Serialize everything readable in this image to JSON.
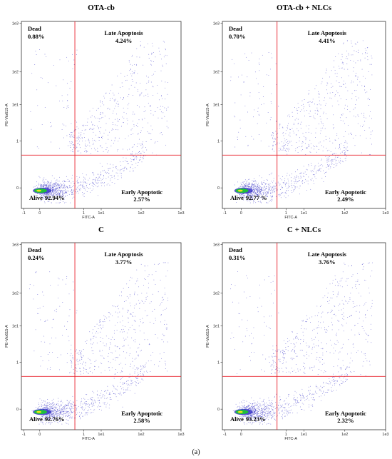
{
  "caption": "(a)",
  "colors": {
    "gate": "#e8202a",
    "dots": "#3a36c8",
    "dense": "#1fbf3a",
    "core": "#f2e51a"
  },
  "chart_data": [
    {
      "type": "scatter",
      "title": "OTA-cb",
      "xlabel": "FITC-A",
      "ylabel": "PE-Vio615-A",
      "xticks": [
        "-1",
        "0",
        "1",
        "1e1",
        "1e2",
        "1e3"
      ],
      "yticks": [
        "0",
        "1",
        "1e1",
        "1e2",
        "1e3"
      ],
      "quadrants": {
        "dead": {
          "name": "Dead",
          "value": "0.88%"
        },
        "late": {
          "name": "Late Apoptosis",
          "value": "4.24%"
        },
        "alive": {
          "name": "Alive",
          "value": "92.94%"
        },
        "early": {
          "name": "Early Apoptotic",
          "value": "2.57%"
        }
      }
    },
    {
      "type": "scatter",
      "title": "OTA-cb + NLCs",
      "xlabel": "FITC-A",
      "ylabel": "PE-Vio615-A",
      "xticks": [
        "-1",
        "0",
        "1",
        "1e1",
        "1e2",
        "1e3"
      ],
      "yticks": [
        "0",
        "1",
        "1e1",
        "1e2",
        "1e3"
      ],
      "quadrants": {
        "dead": {
          "name": "Dead",
          "value": "0.70%"
        },
        "late": {
          "name": "Late Apoptosis",
          "value": "4.41%"
        },
        "alive": {
          "name": "Alive",
          "value": "92.77 %"
        },
        "early": {
          "name": "Early Apoptotic",
          "value": "2.49%"
        }
      }
    },
    {
      "type": "scatter",
      "title": "C",
      "xlabel": "FITC-A",
      "ylabel": "PE-Vio615-A",
      "xticks": [
        "-1",
        "0",
        "1",
        "1e1",
        "1e2",
        "1e3"
      ],
      "yticks": [
        "0",
        "1",
        "1e1",
        "1e2",
        "1e3"
      ],
      "quadrants": {
        "dead": {
          "name": "Dead",
          "value": "0.24%"
        },
        "late": {
          "name": "Late Apoptosis",
          "value": "3.77%"
        },
        "alive": {
          "name": "Alive",
          "value": "92.76%"
        },
        "early": {
          "name": "Early Apoptotic",
          "value": "2.58%"
        }
      }
    },
    {
      "type": "scatter",
      "title": "C + NLCs",
      "xlabel": "FITC-A",
      "ylabel": "PE-Vio615-A",
      "xticks": [
        "-1",
        "0",
        "1",
        "1e1",
        "1e2",
        "1e3"
      ],
      "yticks": [
        "0",
        "1",
        "1e1",
        "1e2",
        "1e3"
      ],
      "quadrants": {
        "dead": {
          "name": "Dead",
          "value": "0.31%"
        },
        "late": {
          "name": "Late Apoptosis",
          "value": "3.76%"
        },
        "alive": {
          "name": "Alive",
          "value": "93.23%"
        },
        "early": {
          "name": "Early Apoptotic",
          "value": "2.32%"
        }
      }
    }
  ]
}
